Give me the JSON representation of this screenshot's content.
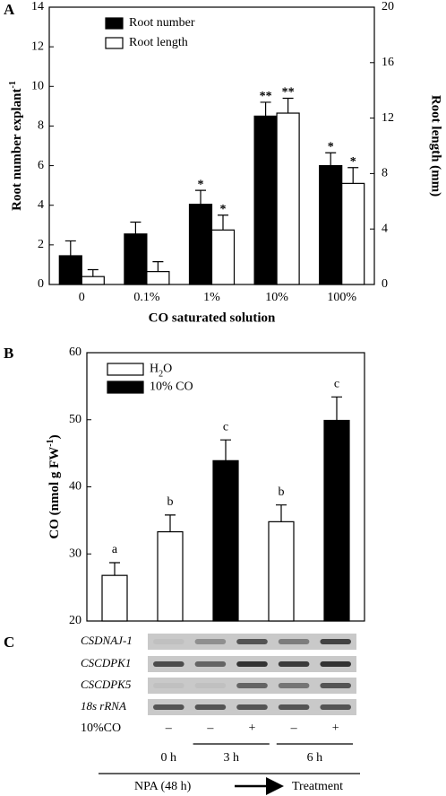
{
  "chart_data": [
    {
      "type": "bar",
      "panel": "A",
      "categories": [
        "0",
        "0.1%",
        "1%",
        "10%",
        "100%"
      ],
      "xlabel": "CO saturated solution",
      "ylabel": [
        "Root number explant",
        "-1"
      ],
      "y2label": "Root length (mm)",
      "ylim": [
        0,
        14
      ],
      "yticks": [
        0,
        2,
        4,
        6,
        8,
        10,
        12,
        14
      ],
      "y2lim": [
        0,
        20
      ],
      "y2ticks": [
        0,
        4,
        8,
        12,
        16,
        20
      ],
      "legend": "upper left",
      "series": [
        {
          "name": [
            "Root number"
          ],
          "color": "#000000",
          "values": [
            1.45,
            2.55,
            4.05,
            8.5,
            6.0
          ],
          "errors": [
            0.75,
            0.6,
            0.7,
            0.7,
            0.65
          ],
          "annotations": [
            null,
            null,
            "*",
            "**",
            "*"
          ]
        },
        {
          "name": [
            "Root length"
          ],
          "color": "#ffffff",
          "axis": "y2",
          "values": [
            0.57,
            0.93,
            3.93,
            12.36,
            7.29
          ],
          "errors": [
            0.5,
            0.71,
            1.07,
            1.07,
            1.14
          ],
          "annotations": [
            null,
            null,
            "*",
            "**",
            "*"
          ]
        }
      ]
    },
    {
      "type": "bar",
      "panel": "B",
      "categories": [
        null,
        null,
        null,
        null,
        null
      ],
      "ylabel": [
        "CO (nmol g FW",
        "-1",
        ")"
      ],
      "ylim": [
        20,
        60
      ],
      "yticks": [
        20,
        30,
        40,
        50,
        60
      ],
      "legend": "upper left",
      "series": [
        {
          "name": [
            "H",
            "2",
            "O"
          ],
          "color": "#ffffff",
          "values": [
            26.8,
            33.3,
            null,
            34.8,
            null
          ],
          "errors": [
            1.9,
            2.5,
            null,
            2.5,
            null
          ],
          "annotations": [
            "a",
            "b",
            null,
            "b",
            null
          ]
        },
        {
          "name": [
            "10% CO"
          ],
          "color": "#000000",
          "values": [
            null,
            null,
            43.9,
            null,
            49.9
          ],
          "errors": [
            null,
            null,
            3.1,
            null,
            3.5
          ],
          "annotations": [
            null,
            null,
            "c",
            null,
            "c"
          ]
        }
      ]
    }
  ],
  "gel": {
    "panel": "C",
    "genes": [
      "CSDNAJ-1",
      "CSCDPK1",
      "CSCDPK5",
      "18s rRNA"
    ],
    "treatment_label": "10%CO",
    "treatment": [
      "–",
      "–",
      "+",
      "–",
      "+"
    ],
    "times": [
      "0 h",
      "3 h",
      "6 h"
    ],
    "pretreatment": "NPA (48 h)",
    "treatment_phase": "Treatment"
  }
}
